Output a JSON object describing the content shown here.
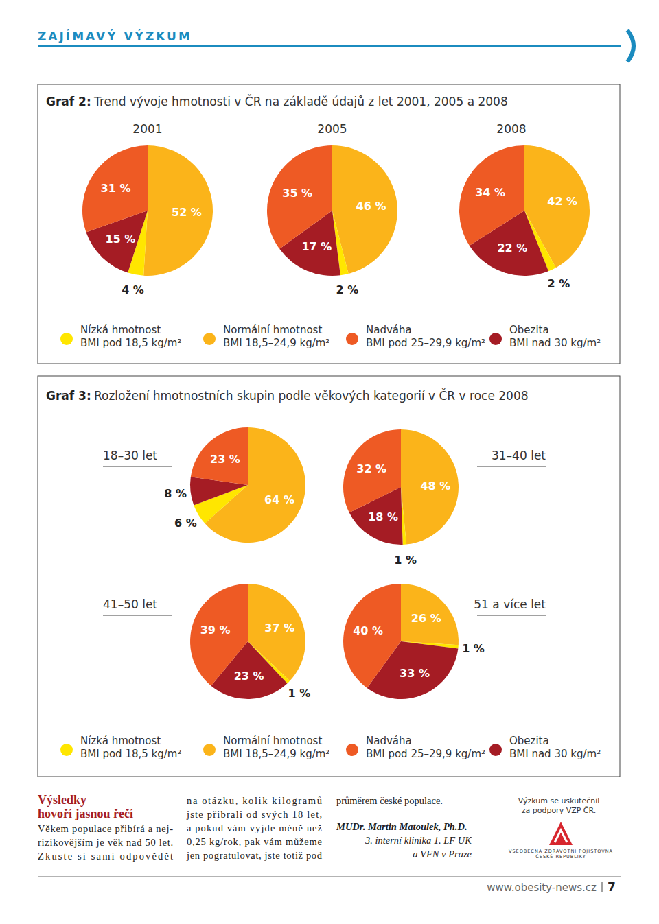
{
  "header": {
    "section": "ZAJÍMAVÝ VÝZKUM"
  },
  "graf2": {
    "label": "Graf 2:",
    "title": "Trend vývoje hmotnosti v ČR na základě údajů z let 2001, 2005 a 2008",
    "legend": [
      {
        "label": "Nízká hmotnost",
        "sublabel": "BMI pod 18,5 kg/m²",
        "color": "#ffe600"
      },
      {
        "label": "Normální hmotnost",
        "sublabel": "BMI 18,5–24,9 kg/m²",
        "color": "#fbb41a"
      },
      {
        "label": "Nadváha",
        "sublabel": "BMI pod 25–29,9 kg/m²",
        "color": "#ee5a24"
      },
      {
        "label": "Obezita",
        "sublabel": "BMI nad 30 kg/m²",
        "color": "#a51c24"
      }
    ]
  },
  "graf3": {
    "label": "Graf 3:",
    "title": "Rozložení hmotnostních skupin podle věkových kategorií v ČR v roce 2008",
    "legend": [
      {
        "label": "Nízká hmotnost",
        "sublabel": "BMI pod 18,5 kg/m²",
        "color": "#ffe600"
      },
      {
        "label": "Normální hmotnost",
        "sublabel": "BMI 18,5–24,9 kg/m²",
        "color": "#fbb41a"
      },
      {
        "label": "Nadváha",
        "sublabel": "BMI pod 25–29,9 kg/m²",
        "color": "#ee5a24"
      },
      {
        "label": "Obezita",
        "sublabel": "BMI nad 30 kg/m²",
        "color": "#a51c24"
      }
    ]
  },
  "chart_data": [
    {
      "type": "pie",
      "title": "2001",
      "values": [
        52,
        4,
        15,
        31
      ],
      "value_labels": [
        "52 %",
        "4 %",
        "15 %",
        "31 %"
      ],
      "colors": [
        "#fbb41a",
        "#ffe600",
        "#a51c24",
        "#ee5a24"
      ],
      "data_labels": true
    },
    {
      "type": "pie",
      "title": "2005",
      "values": [
        46,
        2,
        17,
        35
      ],
      "value_labels": [
        "46 %",
        "2 %",
        "17 %",
        "35 %"
      ],
      "colors": [
        "#fbb41a",
        "#ffe600",
        "#a51c24",
        "#ee5a24"
      ],
      "data_labels": true
    },
    {
      "type": "pie",
      "title": "2008",
      "values": [
        42,
        2,
        22,
        34
      ],
      "value_labels": [
        "42 %",
        "2 %",
        "22 %",
        "34 %"
      ],
      "colors": [
        "#fbb41a",
        "#ffe600",
        "#a51c24",
        "#ee5a24"
      ],
      "data_labels": true
    },
    {
      "type": "pie",
      "title": "18–30 let",
      "values": [
        64,
        6,
        8,
        23
      ],
      "value_labels": [
        "64 %",
        "6 %",
        "8 %",
        "23 %"
      ],
      "colors": [
        "#fbb41a",
        "#ffe600",
        "#a51c24",
        "#ee5a24"
      ],
      "data_labels": true
    },
    {
      "type": "pie",
      "title": "31–40 let",
      "values": [
        48,
        1,
        18,
        32
      ],
      "value_labels": [
        "48 %",
        "1 %",
        "18 %",
        "32 %"
      ],
      "colors": [
        "#fbb41a",
        "#ffe600",
        "#a51c24",
        "#ee5a24"
      ],
      "data_labels": true
    },
    {
      "type": "pie",
      "title": "41–50 let",
      "values": [
        37,
        1,
        23,
        39
      ],
      "value_labels": [
        "37 %",
        "1 %",
        "23 %",
        "39 %"
      ],
      "colors": [
        "#fbb41a",
        "#ffe600",
        "#a51c24",
        "#ee5a24"
      ],
      "data_labels": true
    },
    {
      "type": "pie",
      "title": "51 a více let",
      "values": [
        26,
        1,
        33,
        40
      ],
      "value_labels": [
        "26 %",
        "1 %",
        "33 %",
        "40 %"
      ],
      "colors": [
        "#fbb41a",
        "#ffe600",
        "#a51c24",
        "#ee5a24"
      ],
      "data_labels": true
    }
  ],
  "article": {
    "heading": [
      "Výsledky",
      "hovoří jasnou řečí"
    ],
    "columns": [
      [
        "Věkem populace přibírá a nej-",
        "rizikovějším je věk nad 50 let.",
        "Zkuste si sami odpovědět"
      ],
      [
        "na otázku, kolik kilogramů",
        "jste přibrali od svých 18 let,",
        "a pokud vám vyjde méně než",
        "0,25 kg/rok, pak vám můžeme",
        "jen pogratulovat, jste totiž pod"
      ],
      [
        "průměrem české populace."
      ]
    ]
  },
  "author": {
    "name": "MUDr. Martin Matoulek, Ph.D.",
    "affiliation": [
      "3. interní klinika 1. LF UK",
      "a VFN v Praze"
    ]
  },
  "sponsor": {
    "note": [
      "Výzkum se uskutečnil",
      "za podpory VZP ČR."
    ],
    "logo_text": [
      "VŠEOBECNÁ ZDRAVOTNÍ POJIŠŤOVNA",
      "ČESKÉ REPUBLIKY"
    ]
  },
  "footer": {
    "url": "www.obesity-news.cz",
    "page": 7
  }
}
